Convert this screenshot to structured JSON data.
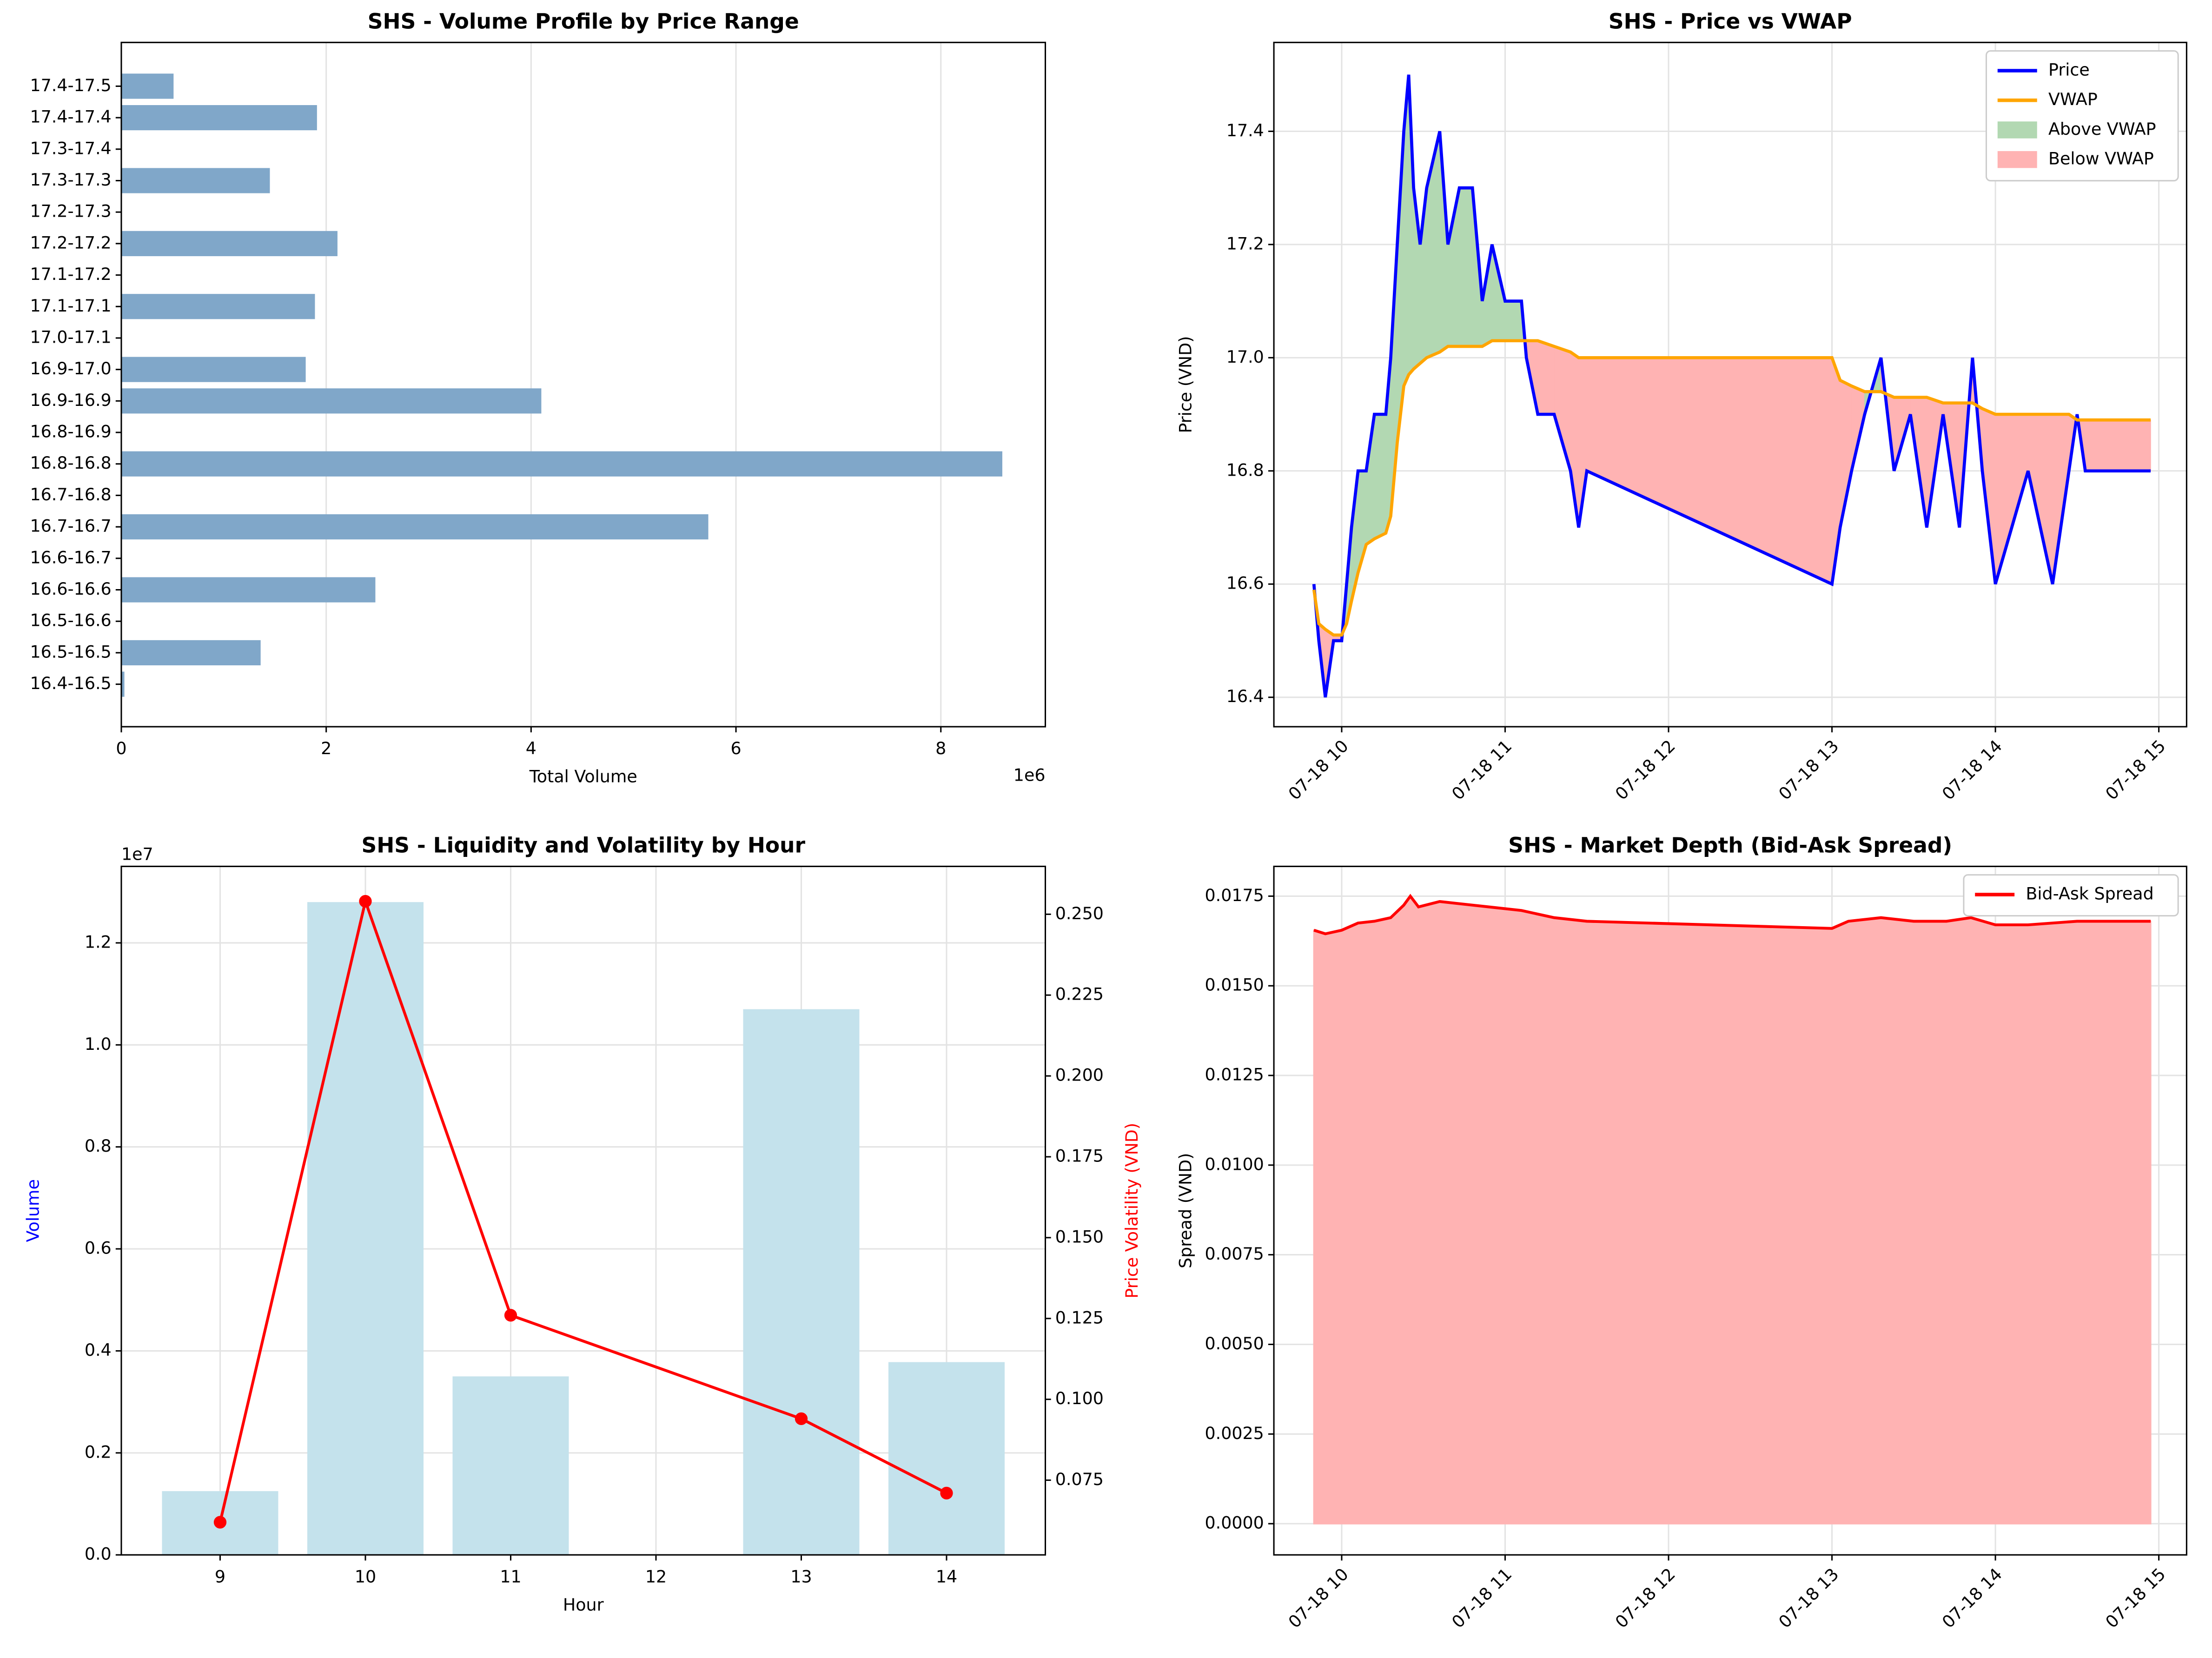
{
  "chart_data": [
    {
      "type": "barh",
      "title": "SHS - Volume Profile by Price Range",
      "xlabel": "Total Volume",
      "x_offset_label": "1e6",
      "categories": [
        "16.4-16.5",
        "16.5-16.5",
        "16.5-16.6",
        "16.6-16.6",
        "16.6-16.7",
        "16.7-16.7",
        "16.7-16.8",
        "16.8-16.8",
        "16.8-16.9",
        "16.9-16.9",
        "16.9-17.0",
        "17.0-17.1",
        "17.1-17.1",
        "17.1-17.2",
        "17.2-17.2",
        "17.2-17.3",
        "17.3-17.3",
        "17.3-17.4",
        "17.4-17.4",
        "17.4-17.5"
      ],
      "values": [
        30000,
        1360000,
        0,
        2480000,
        0,
        5730000,
        0,
        8600000,
        0,
        4100000,
        1800000,
        0,
        1890000,
        0,
        2110000,
        0,
        1450000,
        0,
        1910000,
        510000
      ],
      "color": "#80a7c9",
      "xlim": [
        0,
        9020000
      ],
      "xticks": [
        0,
        {
          "value": 2000000,
          "label": "2"
        },
        {
          "value": 4000000,
          "label": "4"
        },
        {
          "value": 6000000,
          "label": "6"
        },
        {
          "value": 8000000,
          "label": "8"
        }
      ],
      "grid": true
    },
    {
      "type": "line",
      "title": "SHS - Price vs VWAP",
      "ylabel": "Price (VND)",
      "x": [
        9.83,
        9.86,
        9.9,
        9.95,
        10.0,
        10.03,
        10.06,
        10.1,
        10.15,
        10.2,
        10.27,
        10.3,
        10.34,
        10.38,
        10.41,
        10.44,
        10.48,
        10.52,
        10.6,
        10.65,
        10.72,
        10.8,
        10.86,
        10.92,
        11.0,
        11.1,
        11.13,
        11.2,
        11.3,
        11.4,
        11.45,
        11.5,
        13.0,
        13.05,
        13.12,
        13.2,
        13.3,
        13.38,
        13.48,
        13.58,
        13.68,
        13.78,
        13.86,
        13.92,
        14.0,
        14.1,
        14.2,
        14.35,
        14.45,
        14.5,
        14.55,
        14.95
      ],
      "series": [
        {
          "name": "Price",
          "color": "#0000ff",
          "values": [
            16.6,
            16.5,
            16.4,
            16.5,
            16.5,
            16.6,
            16.7,
            16.8,
            16.8,
            16.9,
            16.9,
            17.0,
            17.2,
            17.4,
            17.5,
            17.3,
            17.2,
            17.3,
            17.4,
            17.2,
            17.3,
            17.3,
            17.1,
            17.2,
            17.1,
            17.1,
            17.0,
            16.9,
            16.9,
            16.8,
            16.7,
            16.8,
            16.6,
            16.7,
            16.8,
            16.9,
            17.0,
            16.8,
            16.9,
            16.7,
            16.9,
            16.7,
            17.0,
            16.8,
            16.6,
            16.7,
            16.8,
            16.6,
            16.8,
            16.9,
            16.8,
            16.8
          ]
        },
        {
          "name": "VWAP",
          "color": "#ffa500",
          "values": [
            16.59,
            16.53,
            16.52,
            16.51,
            16.51,
            16.53,
            16.57,
            16.62,
            16.67,
            16.68,
            16.69,
            16.72,
            16.85,
            16.95,
            16.97,
            16.98,
            16.99,
            17.0,
            17.01,
            17.02,
            17.02,
            17.02,
            17.02,
            17.03,
            17.03,
            17.03,
            17.03,
            17.03,
            17.02,
            17.01,
            17.0,
            17.0,
            17.0,
            16.96,
            16.95,
            16.94,
            16.94,
            16.93,
            16.93,
            16.93,
            16.92,
            16.92,
            16.92,
            16.91,
            16.9,
            16.9,
            16.9,
            16.9,
            16.9,
            16.89,
            16.89,
            16.89
          ]
        }
      ],
      "fills": [
        {
          "name": "Above VWAP",
          "color": "#b2d8b2"
        },
        {
          "name": "Below VWAP",
          "color": "#ffb3b3"
        }
      ],
      "xlim": [
        9.585,
        15.17
      ],
      "xticks": [
        {
          "value": 10,
          "label": "07-18 10"
        },
        {
          "value": 11,
          "label": "07-18 11"
        },
        {
          "value": 12,
          "label": "07-18 12"
        },
        {
          "value": 13,
          "label": "07-18 13"
        },
        {
          "value": 14,
          "label": "07-18 14"
        },
        {
          "value": 15,
          "label": "07-18 15"
        }
      ],
      "ylim": [
        16.348,
        17.557
      ],
      "yticks": [
        16.4,
        16.6,
        16.8,
        {
          "value": 17,
          "label": "17.0"
        },
        17.2,
        17.4
      ],
      "grid": true,
      "legend": "upper right"
    },
    {
      "type": "bar_line",
      "title": "SHS - Liquidity and Volatility by Hour",
      "xlabel": "Hour",
      "ylabel": "Volume",
      "ylabel_color": "#0000ff",
      "y2label": "Price Volatility (VND)",
      "y2label_color": "#ff0000",
      "y_offset_label": "1e7",
      "x": [
        9,
        10,
        11,
        13,
        14
      ],
      "series": [
        {
          "color": "#c4e2ec",
          "values": [
            1250000,
            12800000,
            3500000,
            10700000,
            3780000
          ]
        },
        {
          "color": "#ff0000",
          "values": [
            0.062,
            0.254,
            0.126,
            0.094,
            0.071
          ],
          "axis": "y2"
        }
      ],
      "xlim": [
        8.32,
        14.68
      ],
      "xticks": [
        9,
        10,
        11,
        12,
        13,
        14
      ],
      "ylim": [
        0,
        13500000
      ],
      "yticks": [
        {
          "value": 0,
          "label": "0.0"
        },
        {
          "value": 2000000,
          "label": "0.2"
        },
        {
          "value": 4000000,
          "label": "0.4"
        },
        {
          "value": 6000000,
          "label": "0.6"
        },
        {
          "value": 8000000,
          "label": "0.8"
        },
        {
          "value": 10000000,
          "label": "1.0"
        },
        {
          "value": 12000000,
          "label": "1.2"
        }
      ],
      "y2lim": [
        0.0519,
        0.2648
      ],
      "y2ticks": [
        0.075,
        {
          "value": 0.1,
          "label": "0.100"
        },
        0.125,
        {
          "value": 0.15,
          "label": "0.150"
        },
        0.175,
        {
          "value": 0.2,
          "label": "0.200"
        },
        0.225,
        {
          "value": 0.25,
          "label": "0.250"
        }
      ],
      "grid": true
    },
    {
      "type": "area",
      "title": "SHS - Market Depth (Bid-Ask Spread)",
      "ylabel": "Spread (VND)",
      "x": [
        9.83,
        9.9,
        10.0,
        10.1,
        10.2,
        10.3,
        10.38,
        10.42,
        10.47,
        10.6,
        10.7,
        10.9,
        11.1,
        11.3,
        11.5,
        13.0,
        13.1,
        13.3,
        13.5,
        13.7,
        13.85,
        14.0,
        14.2,
        14.5,
        14.95
      ],
      "series": [
        {
          "name": "Bid-Ask Spread",
          "color": "#ff0000",
          "fill_color": "#ffb3b3",
          "values": [
            0.01655,
            0.01645,
            0.01655,
            0.01675,
            0.0168,
            0.0169,
            0.01725,
            0.0175,
            0.0172,
            0.01735,
            0.0173,
            0.0172,
            0.0171,
            0.0169,
            0.0168,
            0.0166,
            0.0168,
            0.0169,
            0.0168,
            0.0168,
            0.0169,
            0.0167,
            0.0167,
            0.0168,
            0.0168
          ]
        }
      ],
      "xlim": [
        9.585,
        15.17
      ],
      "xticks": [
        {
          "value": 10,
          "label": "07-18 10"
        },
        {
          "value": 11,
          "label": "07-18 11"
        },
        {
          "value": 12,
          "label": "07-18 12"
        },
        {
          "value": 13,
          "label": "07-18 13"
        },
        {
          "value": 14,
          "label": "07-18 14"
        },
        {
          "value": 15,
          "label": "07-18 15"
        }
      ],
      "ylim": [
        -0.00087,
        0.01833
      ],
      "yticks": [
        {
          "value": 0,
          "label": "0.0000"
        },
        0.0025,
        {
          "value": 0.005,
          "label": "0.0050"
        },
        0.0075,
        {
          "value": 0.01,
          "label": "0.0100"
        },
        0.0125,
        {
          "value": 0.015,
          "label": "0.0150"
        },
        0.0175
      ],
      "grid": true,
      "legend": "upper right"
    }
  ]
}
